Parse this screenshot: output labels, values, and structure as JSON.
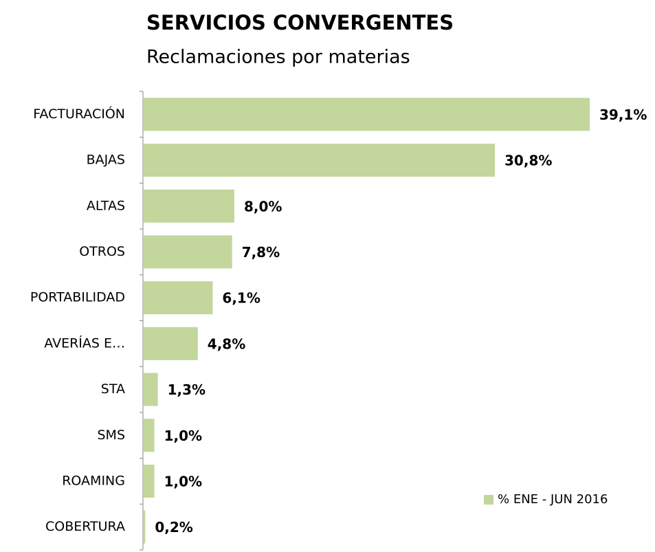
{
  "chart_data": {
    "type": "barh",
    "title": "SERVICIOS CONVERGENTES",
    "subtitle": "Reclamaciones por materias",
    "categories": [
      "FACTURACIÓN",
      "BAJAS",
      "ALTAS",
      "OTROS",
      "PORTABILIDAD",
      "AVERÍAS E…",
      "STA",
      "SMS",
      "ROAMING",
      "COBERTURA"
    ],
    "series": [
      {
        "name": "% ENE - JUN 2016",
        "color": "#c3d69b",
        "values": [
          39.1,
          30.8,
          8.0,
          7.8,
          6.1,
          4.8,
          1.3,
          1.0,
          1.0,
          0.2
        ],
        "value_labels": [
          "39,1%",
          "30,8%",
          "8,0%",
          "7,8%",
          "6,1%",
          "4,8%",
          "1,3%",
          "1,0%",
          "1,0%",
          "0,2%"
        ]
      }
    ],
    "legend": "lower right"
  }
}
